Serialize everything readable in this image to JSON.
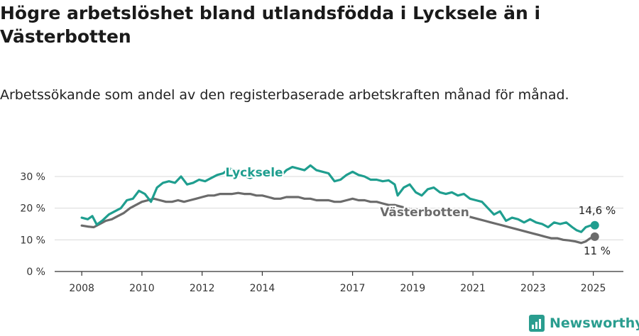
{
  "title": "Högre arbetslöshet bland utlandsfödda i Lycksele än i Västerbotten",
  "subtitle": "Arbetssökande som andel av den registerbaserade arbetskraften månad för månad.",
  "brand": {
    "name": "Newsworthy",
    "icon": "newsworthy-logo-icon",
    "color": "#2a9d8f"
  },
  "chart_data": {
    "type": "line",
    "title": "Högre arbetslöshet bland utlandsfödda i Lycksele än i Västerbotten",
    "subtitle": "Arbetssökande som andel av den registerbaserade arbetskraften månad för månad.",
    "xlabel": "",
    "ylabel": "",
    "xlim": [
      2007.1,
      2026.0
    ],
    "ylim": [
      0,
      30
    ],
    "x_ticks": [
      2008,
      2010,
      2012,
      2014,
      2017,
      2019,
      2021,
      2023,
      2025
    ],
    "y_ticks": [
      0,
      10,
      20,
      30
    ],
    "y_tick_labels": [
      "0 %",
      "10 %",
      "20 %",
      "30 %"
    ],
    "grid": "horizontal",
    "legend": "inline labels",
    "series": [
      {
        "name": "Lycksele",
        "color": "#1f9e8f",
        "end_label": "14,6 %",
        "points": [
          [
            2008.0,
            17.0
          ],
          [
            2008.2,
            16.5
          ],
          [
            2008.35,
            17.5
          ],
          [
            2008.5,
            14.8
          ],
          [
            2008.7,
            16.2
          ],
          [
            2008.9,
            18.0
          ],
          [
            2009.1,
            19.0
          ],
          [
            2009.3,
            20.0
          ],
          [
            2009.5,
            22.5
          ],
          [
            2009.7,
            23.0
          ],
          [
            2009.9,
            25.5
          ],
          [
            2010.1,
            24.5
          ],
          [
            2010.3,
            22.0
          ],
          [
            2010.5,
            26.5
          ],
          [
            2010.7,
            28.0
          ],
          [
            2010.9,
            28.5
          ],
          [
            2011.1,
            28.0
          ],
          [
            2011.3,
            30.0
          ],
          [
            2011.5,
            27.5
          ],
          [
            2011.7,
            28.0
          ],
          [
            2011.9,
            29.0
          ],
          [
            2012.1,
            28.5
          ],
          [
            2012.3,
            29.5
          ],
          [
            2012.5,
            30.5
          ],
          [
            2012.7,
            31.0
          ],
          [
            2012.9,
            32.5
          ],
          [
            2013.1,
            32.0
          ],
          [
            2013.3,
            30.5
          ],
          [
            2013.6,
            29.5
          ],
          [
            2013.8,
            30.5
          ],
          [
            2014.0,
            31.5
          ],
          [
            2014.2,
            30.5
          ],
          [
            2014.4,
            31.5
          ],
          [
            2014.6,
            30.0
          ],
          [
            2014.8,
            32.0
          ],
          [
            2015.0,
            33.0
          ],
          [
            2015.2,
            32.5
          ],
          [
            2015.4,
            32.0
          ],
          [
            2015.6,
            33.5
          ],
          [
            2015.8,
            32.0
          ],
          [
            2016.0,
            31.5
          ],
          [
            2016.2,
            31.0
          ],
          [
            2016.4,
            28.5
          ],
          [
            2016.6,
            29.0
          ],
          [
            2016.8,
            30.5
          ],
          [
            2017.0,
            31.5
          ],
          [
            2017.2,
            30.5
          ],
          [
            2017.4,
            30.0
          ],
          [
            2017.6,
            29.0
          ],
          [
            2017.8,
            29.0
          ],
          [
            2018.0,
            28.5
          ],
          [
            2018.2,
            28.8
          ],
          [
            2018.4,
            27.5
          ],
          [
            2018.5,
            24.0
          ],
          [
            2018.7,
            26.5
          ],
          [
            2018.9,
            27.5
          ],
          [
            2019.1,
            25.0
          ],
          [
            2019.3,
            24.0
          ],
          [
            2019.5,
            26.0
          ],
          [
            2019.7,
            26.5
          ],
          [
            2019.9,
            25.0
          ],
          [
            2020.1,
            24.5
          ],
          [
            2020.3,
            25.0
          ],
          [
            2020.5,
            24.0
          ],
          [
            2020.7,
            24.5
          ],
          [
            2020.9,
            23.0
          ],
          [
            2021.1,
            22.5
          ],
          [
            2021.3,
            22.0
          ],
          [
            2021.5,
            20.0
          ],
          [
            2021.7,
            18.0
          ],
          [
            2021.9,
            19.0
          ],
          [
            2022.1,
            16.0
          ],
          [
            2022.3,
            17.0
          ],
          [
            2022.5,
            16.5
          ],
          [
            2022.7,
            15.5
          ],
          [
            2022.9,
            16.5
          ],
          [
            2023.1,
            15.5
          ],
          [
            2023.3,
            15.0
          ],
          [
            2023.5,
            14.0
          ],
          [
            2023.7,
            15.5
          ],
          [
            2023.9,
            15.0
          ],
          [
            2024.1,
            15.5
          ],
          [
            2024.3,
            14.0
          ],
          [
            2024.45,
            13.0
          ],
          [
            2024.6,
            12.5
          ],
          [
            2024.75,
            14.0
          ],
          [
            2024.9,
            14.5
          ],
          [
            2025.05,
            14.6
          ]
        ]
      },
      {
        "name": "Västerbotten",
        "color": "#6b6b6b",
        "end_label": "11 %",
        "points": [
          [
            2008.0,
            14.5
          ],
          [
            2008.2,
            14.2
          ],
          [
            2008.4,
            14.0
          ],
          [
            2008.6,
            15.0
          ],
          [
            2008.8,
            16.0
          ],
          [
            2009.0,
            16.5
          ],
          [
            2009.2,
            17.5
          ],
          [
            2009.4,
            18.5
          ],
          [
            2009.6,
            20.0
          ],
          [
            2009.8,
            21.0
          ],
          [
            2010.0,
            22.0
          ],
          [
            2010.2,
            22.5
          ],
          [
            2010.4,
            23.0
          ],
          [
            2010.6,
            22.5
          ],
          [
            2010.8,
            22.0
          ],
          [
            2011.0,
            22.0
          ],
          [
            2011.2,
            22.5
          ],
          [
            2011.4,
            22.0
          ],
          [
            2011.6,
            22.5
          ],
          [
            2011.8,
            23.0
          ],
          [
            2012.0,
            23.5
          ],
          [
            2012.2,
            24.0
          ],
          [
            2012.4,
            24.0
          ],
          [
            2012.6,
            24.5
          ],
          [
            2012.8,
            24.5
          ],
          [
            2013.0,
            24.5
          ],
          [
            2013.2,
            24.8
          ],
          [
            2013.4,
            24.5
          ],
          [
            2013.6,
            24.5
          ],
          [
            2013.8,
            24.0
          ],
          [
            2014.0,
            24.0
          ],
          [
            2014.2,
            23.5
          ],
          [
            2014.4,
            23.0
          ],
          [
            2014.6,
            23.0
          ],
          [
            2014.8,
            23.5
          ],
          [
            2015.0,
            23.5
          ],
          [
            2015.2,
            23.5
          ],
          [
            2015.4,
            23.0
          ],
          [
            2015.6,
            23.0
          ],
          [
            2015.8,
            22.5
          ],
          [
            2016.0,
            22.5
          ],
          [
            2016.2,
            22.5
          ],
          [
            2016.4,
            22.0
          ],
          [
            2016.6,
            22.0
          ],
          [
            2016.8,
            22.5
          ],
          [
            2017.0,
            23.0
          ],
          [
            2017.2,
            22.5
          ],
          [
            2017.4,
            22.5
          ],
          [
            2017.6,
            22.0
          ],
          [
            2017.8,
            22.0
          ],
          [
            2018.0,
            21.5
          ],
          [
            2018.2,
            21.0
          ],
          [
            2018.4,
            21.0
          ],
          [
            2018.6,
            20.5
          ],
          [
            2018.8,
            20.0
          ],
          [
            2019.0,
            19.5
          ],
          [
            2019.2,
            19.5
          ],
          [
            2019.4,
            19.0
          ],
          [
            2019.6,
            18.5
          ],
          [
            2019.8,
            18.0
          ],
          [
            2020.0,
            18.0
          ],
          [
            2020.2,
            18.0
          ],
          [
            2020.4,
            17.5
          ],
          [
            2020.6,
            17.5
          ],
          [
            2020.8,
            17.5
          ],
          [
            2021.0,
            17.0
          ],
          [
            2021.2,
            16.5
          ],
          [
            2021.4,
            16.0
          ],
          [
            2021.6,
            15.5
          ],
          [
            2021.8,
            15.0
          ],
          [
            2022.0,
            14.5
          ],
          [
            2022.2,
            14.0
          ],
          [
            2022.4,
            13.5
          ],
          [
            2022.6,
            13.0
          ],
          [
            2022.8,
            12.5
          ],
          [
            2023.0,
            12.0
          ],
          [
            2023.2,
            11.5
          ],
          [
            2023.4,
            11.0
          ],
          [
            2023.6,
            10.5
          ],
          [
            2023.8,
            10.5
          ],
          [
            2024.0,
            10.0
          ],
          [
            2024.2,
            9.8
          ],
          [
            2024.4,
            9.5
          ],
          [
            2024.6,
            9.0
          ],
          [
            2024.75,
            9.5
          ],
          [
            2024.9,
            10.5
          ],
          [
            2025.05,
            11.0
          ]
        ]
      }
    ]
  }
}
